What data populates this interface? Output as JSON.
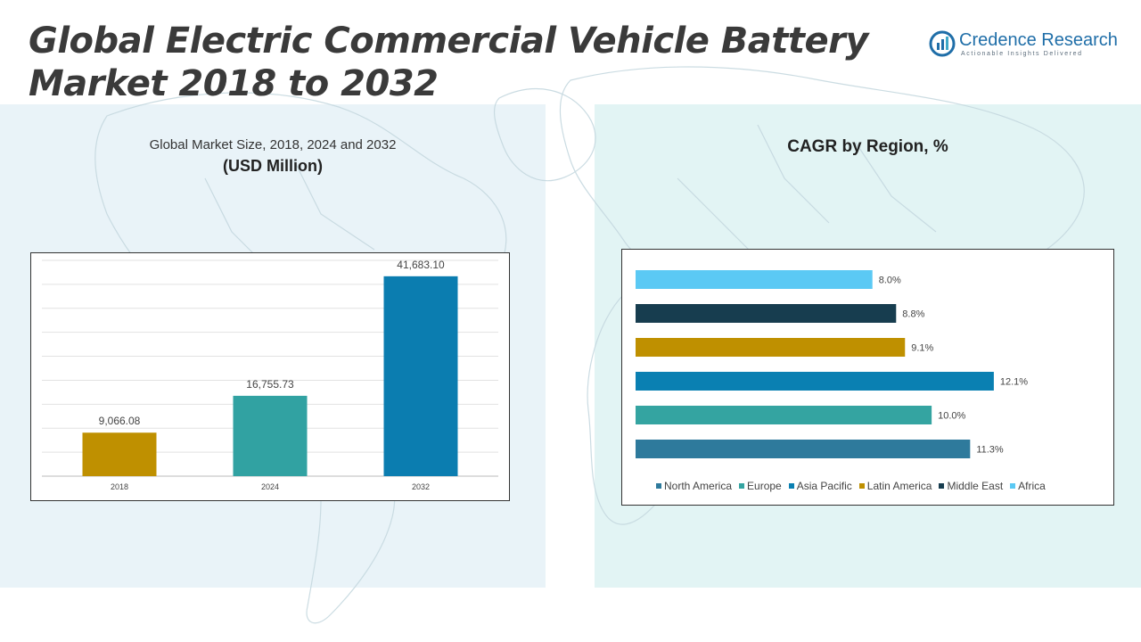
{
  "header": {
    "title_line1": "Global Electric Commercial Vehicle Battery",
    "title_line2": "Market 2018 to 2032"
  },
  "logo": {
    "name": "Credence Research",
    "tagline": "Actionable Insights Delivered",
    "color": "#1f6ea8"
  },
  "chart_data": [
    {
      "type": "bar",
      "title": "Global Market Size, 2018, 2024 and 2032",
      "subtitle": "(USD Million)",
      "categories": [
        "2018",
        "2024",
        "2032"
      ],
      "values": [
        9066.08,
        16755.73,
        41683.1
      ],
      "labels": [
        "9,066.08",
        "16,755.73",
        "41,683.10"
      ],
      "colors": [
        "#bf9000",
        "#31a2a2",
        "#0b7db0"
      ],
      "ylim": [
        0,
        45000
      ],
      "grid": true,
      "legend": "none"
    },
    {
      "type": "bar",
      "orientation": "horizontal",
      "title": "CAGR by Region, %",
      "categories": [
        "North America",
        "Europe",
        "Asia Pacific",
        "Latin America",
        "Middle East",
        "Africa"
      ],
      "values": [
        11.3,
        10.0,
        12.1,
        9.1,
        8.8,
        8.0
      ],
      "labels": [
        "11.3%",
        "10.0%",
        "12.1%",
        "9.1%",
        "8.8%",
        "8.0%"
      ],
      "colors": [
        "#2e7a9c",
        "#34a4a1",
        "#0a80b2",
        "#bf9000",
        "#173d4f",
        "#5bc9f4"
      ],
      "xlim": [
        0,
        14
      ],
      "legend": "bottom"
    }
  ]
}
